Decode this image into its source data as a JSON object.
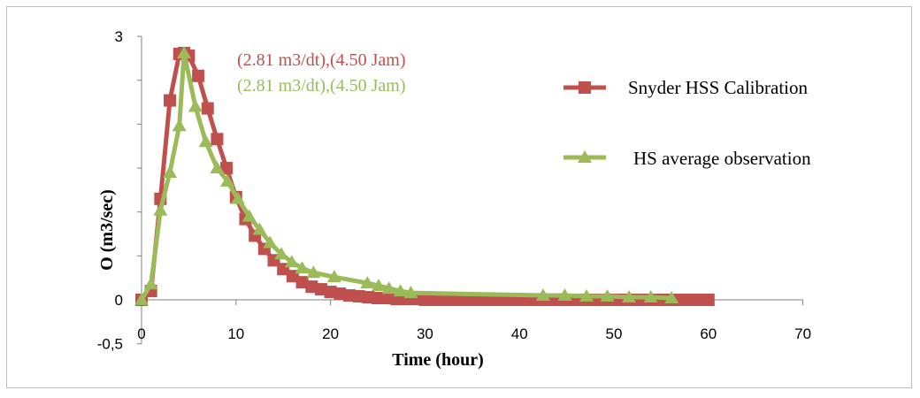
{
  "chart_data": {
    "type": "line",
    "xlabel": "Time (hour)",
    "ylabel": "O (m3/sec)",
    "xlim": [
      0,
      70
    ],
    "x_ticks": [
      "0",
      "10",
      "20",
      "30",
      "40",
      "50",
      "60",
      "70"
    ],
    "y_ticks": [
      "-0,5",
      "0",
      "3"
    ],
    "y_mapping": {
      "-0,5": -0.5,
      "0": 0,
      "3": 3
    },
    "grid": false,
    "legend_position": "right",
    "annotations": [
      {
        "text": "(2.81 m3/dt),(4.50 Jam)",
        "color": "#c0504d"
      },
      {
        "text": "(2.81 m3/dt),(4.50 Jam)",
        "color": "#9bbb59"
      }
    ],
    "series": [
      {
        "name": "Snyder HSS Calibration",
        "color": "#c0504d",
        "marker": "square",
        "x": [
          0,
          1,
          2,
          3,
          4,
          4.5,
          5,
          6,
          7,
          8,
          9,
          10,
          11,
          12,
          13,
          14,
          15,
          16,
          17,
          18,
          19,
          20,
          21,
          22,
          23,
          24,
          25,
          26,
          27,
          28,
          29,
          30,
          31,
          32,
          33,
          34,
          35,
          36,
          37,
          38,
          39,
          40,
          41,
          42,
          43,
          44,
          45,
          46,
          47,
          48,
          49,
          50,
          51,
          52,
          53,
          54,
          55,
          56,
          57,
          58,
          59,
          60
        ],
        "y": [
          0,
          0.1,
          1.15,
          2.27,
          2.8,
          2.81,
          2.78,
          2.55,
          2.18,
          1.83,
          1.5,
          1.17,
          0.92,
          0.73,
          0.58,
          0.45,
          0.35,
          0.27,
          0.2,
          0.15,
          0.12,
          0.09,
          0.07,
          0.05,
          0.04,
          0.03,
          0.02,
          0.02,
          0.01,
          0.01,
          0.01,
          0,
          0,
          0,
          0,
          0,
          0,
          0,
          0,
          0,
          0,
          0,
          0,
          0,
          0,
          0,
          0,
          0,
          0,
          0,
          0,
          0,
          0,
          0,
          0,
          0,
          0,
          0,
          0,
          0,
          0,
          0
        ]
      },
      {
        "name": "HS average observation",
        "color": "#9bbb59",
        "marker": "triangle",
        "x": [
          0,
          1,
          2,
          3,
          4,
          4.5,
          5.7,
          6.8,
          8,
          9.1,
          10.2,
          11.4,
          12.5,
          13.6,
          14.8,
          15.9,
          17,
          18.2,
          20.4,
          23.9,
          25.1,
          26.2,
          27.4,
          28.5,
          42.5,
          44.8,
          47.1,
          49.3,
          51.6,
          53.9,
          56.1
        ],
        "y": [
          0,
          0.18,
          1.02,
          1.45,
          1.98,
          2.81,
          2.2,
          1.8,
          1.5,
          1.35,
          1.15,
          0.95,
          0.8,
          0.65,
          0.52,
          0.43,
          0.36,
          0.31,
          0.26,
          0.19,
          0.16,
          0.13,
          0.1,
          0.08,
          0.05,
          0.05,
          0.04,
          0.04,
          0.03,
          0.03,
          0.02
        ]
      }
    ]
  }
}
